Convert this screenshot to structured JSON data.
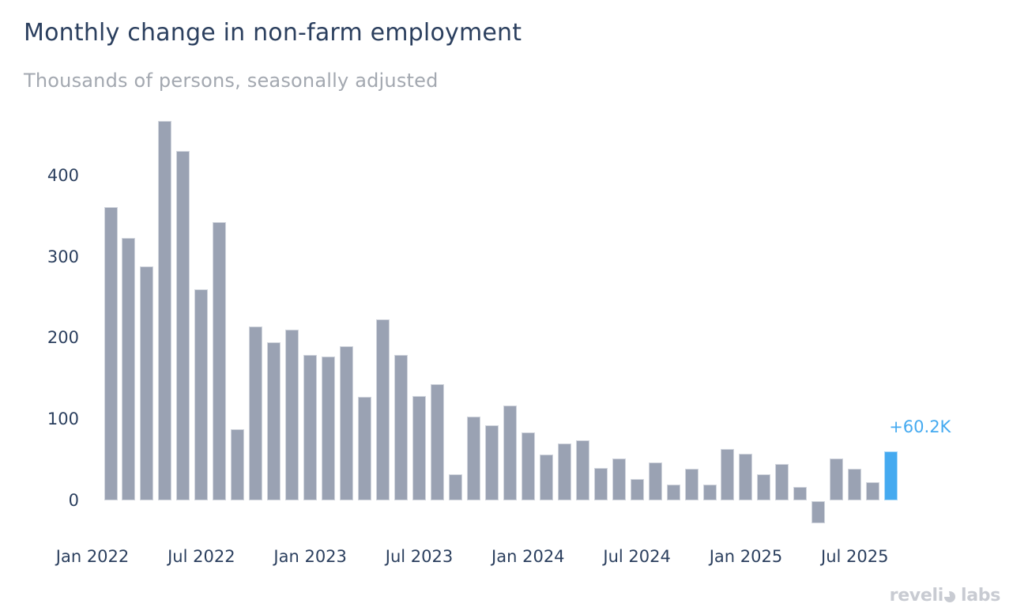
{
  "header": {
    "title": "Monthly change in non-farm employment",
    "subtitle": "Thousands of persons, seasonally adjusted"
  },
  "chart_data": {
    "type": "bar",
    "title": "Monthly change in non-farm employment",
    "subtitle": "Thousands of persons, seasonally adjusted",
    "units": "Thousands of persons, seasonally adjusted",
    "x": [
      "Feb 2022",
      "Mar 2022",
      "Apr 2022",
      "May 2022",
      "Jun 2022",
      "Jul 2022",
      "Aug 2022",
      "Sep 2022",
      "Oct 2022",
      "Nov 2022",
      "Dec 2022",
      "Jan 2023",
      "Feb 2023",
      "Mar 2023",
      "Apr 2023",
      "May 2023",
      "Jun 2023",
      "Jul 2023",
      "Aug 2023",
      "Sep 2023",
      "Oct 2023",
      "Nov 2023",
      "Dec 2023",
      "Jan 2024",
      "Feb 2024",
      "Mar 2024",
      "Apr 2024",
      "May 2024",
      "Jun 2024",
      "Jul 2024",
      "Aug 2024",
      "Sep 2024",
      "Oct 2024",
      "Nov 2024",
      "Dec 2024",
      "Jan 2025",
      "Feb 2025",
      "Mar 2025",
      "Apr 2025",
      "May 2025",
      "Jun 2025",
      "Jul 2025",
      "Aug 2025",
      "Sep 2025"
    ],
    "values": [
      361,
      323,
      288,
      467,
      430,
      260,
      342,
      88,
      214,
      195,
      210,
      179,
      177,
      190,
      128,
      223,
      179,
      129,
      143,
      32,
      103,
      93,
      117,
      84,
      57,
      70,
      74,
      40,
      52,
      27,
      47,
      20,
      39,
      20,
      63,
      58,
      32,
      45,
      17,
      -27,
      52,
      39,
      23,
      60.2
    ],
    "highlight_index": 43,
    "annotation": {
      "text": "+60.2K",
      "target_month": "Sep 2025"
    },
    "y_ticks": [
      400,
      300,
      200,
      100,
      0
    ],
    "x_ticks": [
      {
        "label": "Jan 2022",
        "month_offset": -1
      },
      {
        "label": "Jul 2022",
        "month_offset": 5
      },
      {
        "label": "Jan 2023",
        "month_offset": 11
      },
      {
        "label": "Jul 2023",
        "month_offset": 17
      },
      {
        "label": "Jan 2024",
        "month_offset": 23
      },
      {
        "label": "Jul 2024",
        "month_offset": 29
      },
      {
        "label": "Jan 2025",
        "month_offset": 35
      },
      {
        "label": "Jul 2025",
        "month_offset": 41
      }
    ],
    "ylim": [
      -45,
      480
    ],
    "grid": false,
    "legend": "none",
    "bar_color": "#9aa2b3",
    "highlight_color": "#45aaf0"
  },
  "branding": {
    "logo_text_1": "reveli",
    "logo_text_2": "labs"
  },
  "colors": {
    "title": "#2b3f5e",
    "subtitle": "#a3a8b0",
    "axis_text": "#2b3f5e",
    "bar": "#9aa2b3",
    "highlight": "#45aaf0",
    "annotation": "#45aaf0",
    "logo": "#c8cbd2",
    "background": "#ffffff"
  }
}
